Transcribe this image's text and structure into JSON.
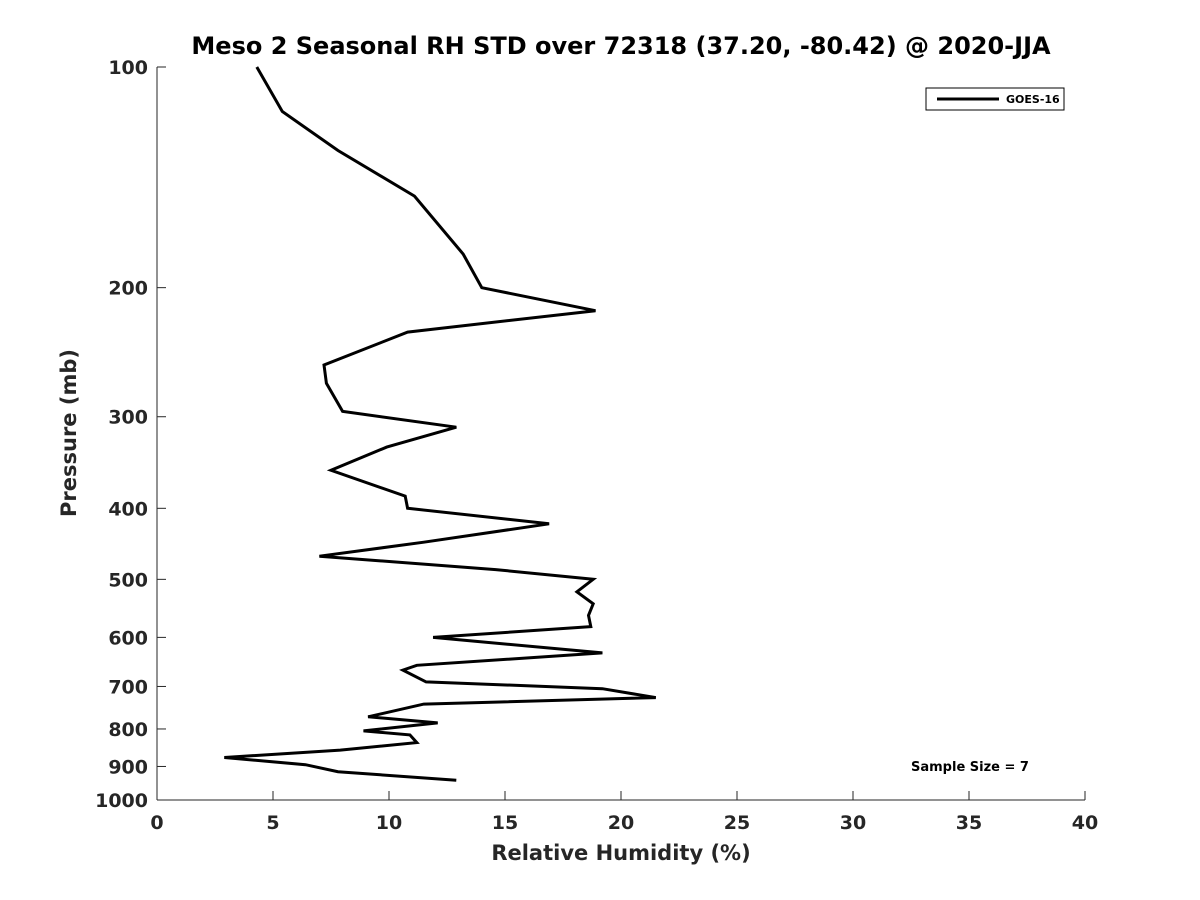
{
  "chart_data": {
    "type": "line",
    "title": "Meso 2 Seasonal RH STD over 72318 (37.20, -80.42) @ 2020-JJA",
    "xlabel": "Relative Humidity (%)",
    "ylabel": "Pressure (mb)",
    "xlim": [
      0,
      40
    ],
    "ylim": [
      100,
      1000
    ],
    "y_scale": "log",
    "y_reversed": true,
    "xticks": [
      0,
      5,
      10,
      15,
      20,
      25,
      30,
      35,
      40
    ],
    "yticks": [
      100,
      200,
      300,
      400,
      500,
      600,
      700,
      800,
      900,
      1000
    ],
    "grid": false,
    "legend_position": "top-right",
    "annotation": "Sample Size = 7",
    "series": [
      {
        "name": "GOES-16",
        "color": "#000000",
        "x": [
          4.3,
          5.4,
          7.8,
          11.1,
          13.2,
          14.0,
          18.9,
          10.8,
          7.2,
          7.3,
          8.0,
          12.9,
          9.9,
          7.5,
          10.7,
          10.8,
          16.9,
          11.5,
          7.0,
          14.6,
          18.8,
          18.1,
          18.8,
          18.6,
          18.7,
          11.9,
          19.2,
          11.2,
          10.6,
          11.6,
          19.2,
          21.5,
          11.5,
          9.1,
          12.1,
          8.9,
          10.9,
          11.2,
          7.9,
          2.9,
          6.4,
          7.8,
          12.9
        ],
        "y": [
          100,
          115,
          130,
          150,
          180,
          200,
          215,
          230,
          255,
          270,
          295,
          310,
          330,
          355,
          385,
          400,
          420,
          445,
          465,
          485,
          500,
          520,
          540,
          560,
          580,
          600,
          630,
          655,
          665,
          690,
          705,
          725,
          740,
          770,
          785,
          805,
          815,
          835,
          855,
          875,
          895,
          915,
          940
        ]
      }
    ]
  }
}
